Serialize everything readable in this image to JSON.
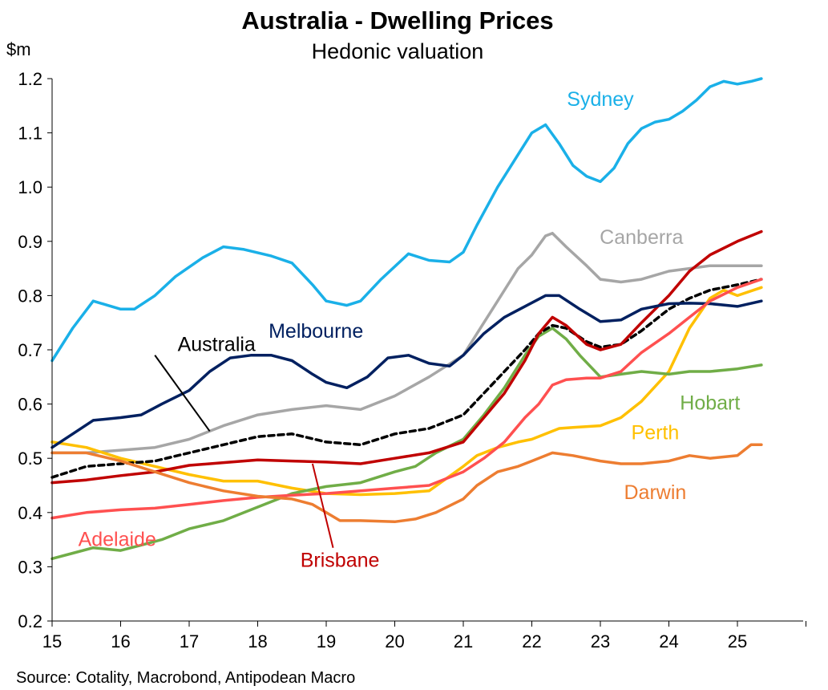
{
  "chart_data": {
    "type": "line",
    "title": "Australia - Dwelling Prices",
    "subtitle": "Hedonic valuation",
    "ylabel": "$m",
    "source": "Source: Cotality, Macrobond, Antipodean Macro",
    "ylim": [
      0.2,
      1.2
    ],
    "y_ticks": [
      "0.2",
      "0.3",
      "0.4",
      "0.5",
      "0.6",
      "0.7",
      "0.8",
      "0.9",
      "1.0",
      "1.1",
      "1.2"
    ],
    "xlim": [
      15,
      26
    ],
    "x_ticks": [
      "15",
      "16",
      "17",
      "18",
      "19",
      "20",
      "21",
      "22",
      "23",
      "24",
      "25"
    ],
    "series": [
      {
        "name": "Sydney",
        "color": "#1ab0e8",
        "dashed": false,
        "x": [
          15,
          15.3,
          15.6,
          16,
          16.2,
          16.5,
          16.8,
          17.2,
          17.5,
          17.8,
          18.2,
          18.5,
          18.8,
          19,
          19.3,
          19.5,
          19.8,
          20.2,
          20.5,
          20.8,
          21,
          21.2,
          21.5,
          21.8,
          22,
          22.2,
          22.4,
          22.6,
          22.8,
          23,
          23.2,
          23.4,
          23.6,
          23.8,
          24,
          24.2,
          24.4,
          24.6,
          24.8,
          25,
          25.2,
          25.35
        ],
        "y": [
          0.68,
          0.74,
          0.79,
          0.775,
          0.775,
          0.8,
          0.835,
          0.87,
          0.89,
          0.885,
          0.873,
          0.86,
          0.82,
          0.79,
          0.782,
          0.79,
          0.83,
          0.877,
          0.865,
          0.862,
          0.88,
          0.93,
          1.0,
          1.06,
          1.1,
          1.115,
          1.08,
          1.04,
          1.02,
          1.01,
          1.035,
          1.08,
          1.108,
          1.12,
          1.125,
          1.14,
          1.16,
          1.185,
          1.195,
          1.19,
          1.195,
          1.2
        ]
      },
      {
        "name": "Canberra",
        "color": "#a6a6a6",
        "dashed": false,
        "x": [
          15,
          15.5,
          16,
          16.5,
          17,
          17.5,
          18,
          18.5,
          19,
          19.5,
          20,
          20.5,
          21,
          21.2,
          21.5,
          21.8,
          22,
          22.2,
          22.3,
          22.5,
          22.8,
          23,
          23.3,
          23.6,
          24,
          24.3,
          24.6,
          25,
          25.35
        ],
        "y": [
          0.51,
          0.51,
          0.515,
          0.52,
          0.535,
          0.56,
          0.58,
          0.59,
          0.597,
          0.59,
          0.615,
          0.65,
          0.69,
          0.73,
          0.79,
          0.85,
          0.875,
          0.91,
          0.915,
          0.89,
          0.855,
          0.83,
          0.825,
          0.83,
          0.845,
          0.85,
          0.855,
          0.855,
          0.855
        ]
      },
      {
        "name": "Perth",
        "color": "#ffc000",
        "dashed": false,
        "x": [
          15,
          15.5,
          16,
          16.5,
          17,
          17.5,
          18,
          18.5,
          19,
          19.5,
          20,
          20.5,
          21,
          21.2,
          21.5,
          21.8,
          22,
          22.2,
          22.4,
          22.6,
          23,
          23.3,
          23.6,
          24,
          24.3,
          24.6,
          24.8,
          25,
          25.35
        ],
        "y": [
          0.53,
          0.52,
          0.5,
          0.485,
          0.47,
          0.458,
          0.458,
          0.445,
          0.435,
          0.433,
          0.435,
          0.44,
          0.485,
          0.505,
          0.52,
          0.53,
          0.535,
          0.545,
          0.555,
          0.557,
          0.56,
          0.575,
          0.605,
          0.66,
          0.74,
          0.795,
          0.81,
          0.8,
          0.815
        ]
      },
      {
        "name": "Hobart",
        "color": "#70ad47",
        "dashed": false,
        "x": [
          15,
          15.3,
          15.6,
          16,
          16.3,
          16.6,
          17,
          17.5,
          18,
          18.5,
          19,
          19.5,
          20,
          20.3,
          20.6,
          21,
          21.3,
          21.6,
          21.9,
          22.1,
          22.3,
          22.5,
          22.7,
          23,
          23.3,
          23.6,
          24,
          24.3,
          24.6,
          25,
          25.35
        ],
        "y": [
          0.315,
          0.325,
          0.335,
          0.33,
          0.34,
          0.35,
          0.37,
          0.385,
          0.41,
          0.435,
          0.448,
          0.455,
          0.475,
          0.485,
          0.51,
          0.535,
          0.58,
          0.63,
          0.69,
          0.725,
          0.74,
          0.72,
          0.69,
          0.65,
          0.655,
          0.66,
          0.655,
          0.66,
          0.66,
          0.665,
          0.672
        ]
      },
      {
        "name": "Australia",
        "color": "#000000",
        "dashed": true,
        "x": [
          15,
          15.5,
          16,
          16.5,
          17,
          17.5,
          18,
          18.5,
          19,
          19.5,
          20,
          20.5,
          21,
          21.3,
          21.6,
          21.9,
          22.1,
          22.3,
          22.5,
          22.8,
          23,
          23.3,
          23.6,
          24,
          24.3,
          24.6,
          25,
          25.35
        ],
        "y": [
          0.465,
          0.485,
          0.49,
          0.495,
          0.51,
          0.525,
          0.54,
          0.545,
          0.53,
          0.525,
          0.545,
          0.555,
          0.58,
          0.62,
          0.66,
          0.7,
          0.73,
          0.745,
          0.74,
          0.715,
          0.705,
          0.71,
          0.735,
          0.775,
          0.795,
          0.81,
          0.82,
          0.83
        ]
      },
      {
        "name": "Brisbane",
        "color": "#c00000",
        "dashed": false,
        "x": [
          15,
          15.5,
          16,
          16.5,
          17,
          17.5,
          18,
          18.5,
          19,
          19.5,
          20,
          20.5,
          21,
          21.3,
          21.6,
          21.9,
          22.1,
          22.3,
          22.5,
          22.8,
          23,
          23.3,
          23.6,
          24,
          24.3,
          24.6,
          25,
          25.35
        ],
        "y": [
          0.455,
          0.46,
          0.468,
          0.475,
          0.487,
          0.492,
          0.497,
          0.495,
          0.493,
          0.49,
          0.5,
          0.51,
          0.53,
          0.575,
          0.62,
          0.68,
          0.73,
          0.76,
          0.745,
          0.71,
          0.7,
          0.71,
          0.75,
          0.8,
          0.845,
          0.875,
          0.9,
          0.918
        ]
      },
      {
        "name": "Melbourne",
        "color": "#002060",
        "dashed": false,
        "x": [
          15,
          15.3,
          15.6,
          16,
          16.3,
          16.6,
          17,
          17.3,
          17.6,
          17.9,
          18.2,
          18.5,
          18.8,
          19,
          19.3,
          19.6,
          19.9,
          20.2,
          20.5,
          20.8,
          21,
          21.3,
          21.6,
          21.9,
          22.2,
          22.4,
          22.7,
          23,
          23.3,
          23.6,
          24,
          24.3,
          24.6,
          25,
          25.35
        ],
        "y": [
          0.52,
          0.545,
          0.57,
          0.575,
          0.58,
          0.6,
          0.625,
          0.66,
          0.685,
          0.69,
          0.69,
          0.68,
          0.655,
          0.64,
          0.63,
          0.65,
          0.685,
          0.69,
          0.675,
          0.67,
          0.69,
          0.73,
          0.76,
          0.78,
          0.8,
          0.8,
          0.775,
          0.752,
          0.755,
          0.775,
          0.785,
          0.786,
          0.785,
          0.78,
          0.79
        ]
      },
      {
        "name": "Adelaide",
        "color": "#ff5050",
        "dashed": false,
        "x": [
          15,
          15.5,
          16,
          16.5,
          17,
          17.5,
          18,
          18.5,
          19,
          19.5,
          20,
          20.5,
          21,
          21.3,
          21.6,
          21.9,
          22.1,
          22.3,
          22.5,
          22.8,
          23,
          23.3,
          23.6,
          24,
          24.3,
          24.6,
          25,
          25.35
        ],
        "y": [
          0.39,
          0.4,
          0.405,
          0.408,
          0.415,
          0.422,
          0.428,
          0.432,
          0.435,
          0.44,
          0.445,
          0.45,
          0.475,
          0.5,
          0.53,
          0.575,
          0.6,
          0.635,
          0.645,
          0.648,
          0.648,
          0.66,
          0.695,
          0.73,
          0.76,
          0.79,
          0.815,
          0.83
        ]
      },
      {
        "name": "Darwin",
        "color": "#ed7d31",
        "dashed": false,
        "x": [
          15,
          15.5,
          16,
          16.5,
          17,
          17.5,
          18,
          18.5,
          18.8,
          19,
          19.2,
          19.5,
          20,
          20.3,
          20.6,
          21,
          21.2,
          21.5,
          21.8,
          22,
          22.3,
          22.6,
          23,
          23.3,
          23.6,
          24,
          24.3,
          24.6,
          25,
          25.2,
          25.35
        ],
        "y": [
          0.51,
          0.51,
          0.495,
          0.475,
          0.455,
          0.44,
          0.43,
          0.425,
          0.415,
          0.4,
          0.385,
          0.385,
          0.383,
          0.388,
          0.4,
          0.425,
          0.45,
          0.475,
          0.485,
          0.495,
          0.51,
          0.505,
          0.495,
          0.49,
          0.49,
          0.495,
          0.505,
          0.5,
          0.505,
          0.525,
          0.525
        ]
      }
    ],
    "labels": [
      {
        "text": "Sydney",
        "color": "#1ab0e8",
        "x": 23.0,
        "y": 1.15,
        "anchor": "middle"
      },
      {
        "text": "Canberra",
        "color": "#a6a6a6",
        "x": 23.6,
        "y": 0.895,
        "anchor": "middle"
      },
      {
        "text": "Melbourne",
        "color": "#002060",
        "x": 18.85,
        "y": 0.722,
        "anchor": "middle"
      },
      {
        "text": "Australia",
        "color": "#000000",
        "x": 17.4,
        "y": 0.698,
        "anchor": "middle"
      },
      {
        "text": "Hobart",
        "color": "#70ad47",
        "x": 24.6,
        "y": 0.59,
        "anchor": "middle"
      },
      {
        "text": "Perth",
        "color": "#ffc000",
        "x": 23.8,
        "y": 0.535,
        "anchor": "middle"
      },
      {
        "text": "Darwin",
        "color": "#ed7d31",
        "x": 23.8,
        "y": 0.425,
        "anchor": "middle"
      },
      {
        "text": "Adelaide",
        "color": "#ff5050",
        "x": 15.95,
        "y": 0.338,
        "anchor": "middle"
      },
      {
        "text": "Brisbane",
        "color": "#c00000",
        "x": 19.2,
        "y": 0.3,
        "anchor": "middle"
      }
    ],
    "arrows": [
      {
        "label": "Australia",
        "color": "#000000",
        "from": [
          16.5,
          0.69
        ],
        "to": [
          17.3,
          0.55
        ]
      },
      {
        "label": "Brisbane",
        "color": "#c00000",
        "from": [
          19.1,
          0.335
        ],
        "to": [
          18.8,
          0.49
        ]
      }
    ]
  }
}
